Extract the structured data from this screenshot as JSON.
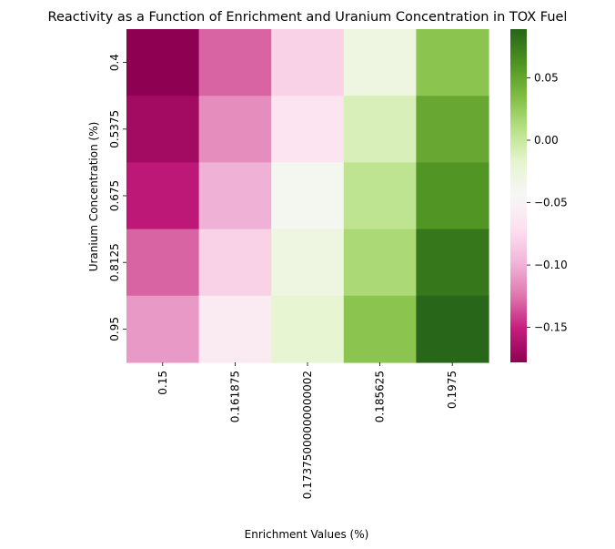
{
  "chart_data": {
    "type": "heatmap",
    "title": "Reactivity as a Function of Enrichment and Uranium Concentration in TOX Fuel",
    "xlabel": "Enrichment Values (%)",
    "ylabel": "Uranium Concentration (%)",
    "x_categories": [
      "0.15",
      "0.161875",
      "0.17375000000000002",
      "0.185625",
      "0.1975"
    ],
    "y_categories": [
      "0.4",
      "0.5375",
      "0.675",
      "0.8125",
      "0.95"
    ],
    "values": [
      [
        -0.178,
        -0.13,
        -0.08,
        -0.03,
        0.03
      ],
      [
        -0.168,
        -0.115,
        -0.065,
        -0.01,
        0.048
      ],
      [
        -0.155,
        -0.1,
        -0.04,
        0.005,
        0.06
      ],
      [
        -0.13,
        -0.08,
        -0.03,
        0.015,
        0.078
      ],
      [
        -0.11,
        -0.06,
        -0.02,
        0.03,
        0.088
      ]
    ],
    "colormap": "PiYG",
    "vmin": -0.178,
    "vmax": 0.089,
    "colorbar_ticks": [
      0.05,
      0.0,
      -0.05,
      -0.1,
      -0.15
    ],
    "colorbar_tick_labels": [
      "0.05",
      "0.00",
      "−0.05",
      "−0.10",
      "−0.15"
    ],
    "colormap_stops": [
      {
        "v": 0.0,
        "color": "#8e0152"
      },
      {
        "v": 0.1,
        "color": "#c51b7d"
      },
      {
        "v": 0.2,
        "color": "#de77ae"
      },
      {
        "v": 0.3,
        "color": "#f1b6da"
      },
      {
        "v": 0.4,
        "color": "#fde0ef"
      },
      {
        "v": 0.5,
        "color": "#f7f7f7"
      },
      {
        "v": 0.6,
        "color": "#e6f5d0"
      },
      {
        "v": 0.7,
        "color": "#b8e186"
      },
      {
        "v": 0.8,
        "color": "#7fbc41"
      },
      {
        "v": 0.9,
        "color": "#4d9221"
      },
      {
        "v": 1.0,
        "color": "#276419"
      }
    ]
  }
}
